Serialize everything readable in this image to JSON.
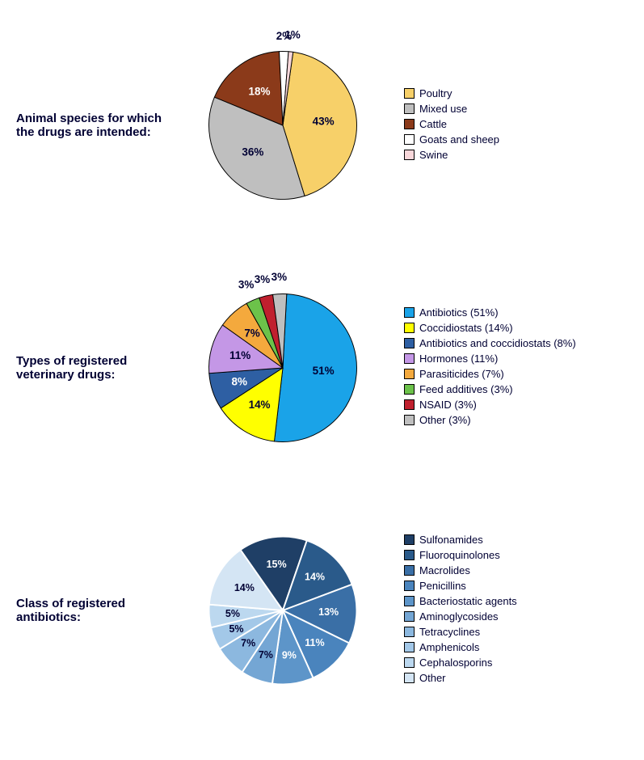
{
  "charts": [
    {
      "title": "Animal species for which the drugs are intended:",
      "type": "pie",
      "radius": 95,
      "label_fontsize": 14,
      "label_color": "#000033",
      "stroke": "#000000",
      "stroke_width": 1,
      "start_angle_deg": 8,
      "slices": [
        {
          "label": "Poultry",
          "value": 43,
          "color": "#f7d069",
          "pct_label": "43%",
          "label_r": 0.55
        },
        {
          "label": "Mixed use",
          "value": 36,
          "color": "#bfbfbf",
          "pct_label": "36%",
          "label_r": 0.55
        },
        {
          "label": "Cattle",
          "value": 18,
          "color": "#8b3a1a",
          "pct_label": "18%",
          "label_r": 0.55,
          "label_text_color": "#ffffff"
        },
        {
          "label": "Goats and sheep",
          "value": 2,
          "color": "#ffffff",
          "pct_label": "2%",
          "label_r": 1.2
        },
        {
          "label": "Swine",
          "value": 1,
          "color": "#f8d7da",
          "pct_label": "1%",
          "label_r": 1.22
        }
      ]
    },
    {
      "title": "Types of registered veterinary drugs:",
      "type": "pie",
      "radius": 95,
      "label_fontsize": 14,
      "label_color": "#000033",
      "stroke": "#000000",
      "stroke_width": 1,
      "start_angle_deg": 3,
      "slices": [
        {
          "label": "Antibiotics (51%)",
          "value": 51,
          "color": "#1aa3e8",
          "pct_label": "51%",
          "label_r": 0.55
        },
        {
          "label": "Coccidiostats (14%)",
          "value": 14,
          "color": "#ffff00",
          "pct_label": "14%",
          "label_r": 0.6
        },
        {
          "label": "Antibiotics and coccidiostats (8%)",
          "value": 8,
          "color": "#2e5fa3",
          "pct_label": "8%",
          "label_r": 0.62,
          "label_text_color": "#ffffff"
        },
        {
          "label": "Hormones (11%)",
          "value": 11,
          "color": "#c497e6",
          "pct_label": "11%",
          "label_r": 0.6
        },
        {
          "label": "Parasiticides (7%)",
          "value": 7,
          "color": "#f4a93d",
          "pct_label": "7%",
          "label_r": 0.62
        },
        {
          "label": "Feed additives (3%)",
          "value": 3,
          "color": "#6cc24a",
          "pct_label": "3%",
          "label_r": 1.22
        },
        {
          "label": "NSAID (3%)",
          "value": 3,
          "color": "#c0202e",
          "pct_label": "3%",
          "label_r": 1.22
        },
        {
          "label": "Other (3%)",
          "value": 3,
          "color": "#bfbfbf",
          "pct_label": "3%",
          "label_r": 1.22
        }
      ]
    },
    {
      "title": "Class of registered antibiotics:",
      "type": "pie",
      "radius": 95,
      "label_fontsize": 13,
      "label_color": "#000033",
      "stroke": "#ffffff",
      "stroke_width": 2,
      "start_angle_deg": -35,
      "slices": [
        {
          "label": "Sulfonamides",
          "value": 15,
          "color": "#1f3f66",
          "pct_label": "15%",
          "label_r": 0.62,
          "label_text_color": "#ffffff"
        },
        {
          "label": "Fluoroquinolones",
          "value": 14,
          "color": "#2a5a8a",
          "pct_label": "14%",
          "label_r": 0.62,
          "label_text_color": "#ffffff"
        },
        {
          "label": "Macrolides",
          "value": 13,
          "color": "#3a6fa6",
          "pct_label": "13%",
          "label_r": 0.62,
          "label_text_color": "#ffffff"
        },
        {
          "label": "Penicillins",
          "value": 11,
          "color": "#4a84bd",
          "pct_label": "11%",
          "label_r": 0.62,
          "label_text_color": "#ffffff"
        },
        {
          "label": "Bacteriostatic agents",
          "value": 9,
          "color": "#5d95c9",
          "pct_label": "9%",
          "label_r": 0.62,
          "label_text_color": "#ffffff"
        },
        {
          "label": "Aminoglycosides",
          "value": 7,
          "color": "#74a6d4",
          "pct_label": "7%",
          "label_r": 0.65
        },
        {
          "label": "Tetracyclines",
          "value": 7,
          "color": "#8cb8df",
          "pct_label": "7%",
          "label_r": 0.65
        },
        {
          "label": "Amphenicols",
          "value": 5,
          "color": "#a3c8e8",
          "pct_label": "5%",
          "label_r": 0.68
        },
        {
          "label": "Cephalosporins",
          "value": 5,
          "color": "#bcd8ef",
          "pct_label": "5%",
          "label_r": 0.68
        },
        {
          "label": "Other",
          "value": 14,
          "color": "#d4e5f4",
          "pct_label": "14%",
          "label_r": 0.6
        }
      ]
    }
  ]
}
